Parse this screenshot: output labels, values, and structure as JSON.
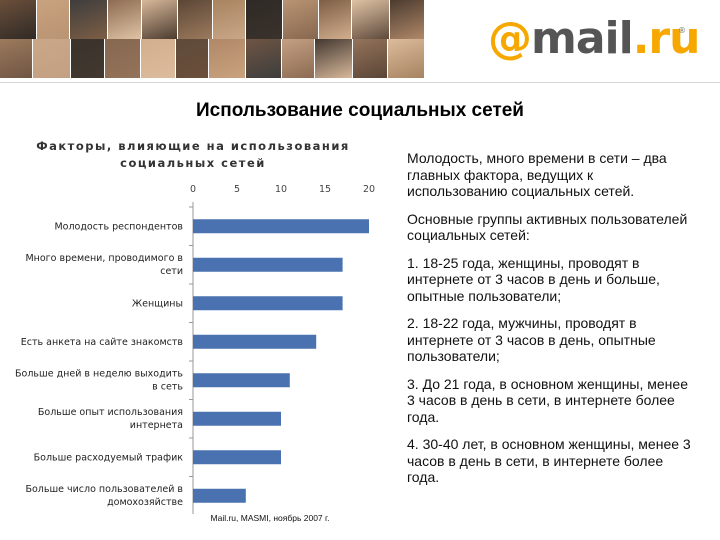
{
  "header": {
    "logo": {
      "at": "@",
      "main": "mail",
      "dot": ".ru",
      "reg": "®"
    }
  },
  "slide_title": "Использование социальных сетей",
  "chart_data": {
    "type": "bar",
    "orientation": "horizontal",
    "title_lines": [
      "Факторы, влияющие на использования",
      "социальных сетей"
    ],
    "categories": [
      [
        "Молодость респондентов"
      ],
      [
        "Много времени, проводимого в",
        "сети"
      ],
      [
        "Женщины"
      ],
      [
        "Есть анкета на сайте знакомств"
      ],
      [
        "Больше дней в неделю выходить",
        "в сеть"
      ],
      [
        "Больше опыт использования",
        "интернета"
      ],
      [
        "Больше расходуемый трафик"
      ],
      [
        "Больше число пользователей в",
        "домохозяйстве"
      ]
    ],
    "values": [
      20,
      17,
      17,
      14,
      11,
      10,
      10,
      6
    ],
    "xlim": [
      0,
      20
    ],
    "xticks": [
      "0",
      "5",
      "10",
      "15",
      "20"
    ],
    "xaxis_position": "top",
    "bar_color": "#4a72b0",
    "grid": false,
    "source_note": "Mail.ru, MASMI, ноябрь 2007 г."
  },
  "text_panel": {
    "intro": "Молодость, много времени в сети – два главных фактора, ведущих к использованию социальных сетей.",
    "groups_heading": "Основные группы активных пользователей социальных сетей:",
    "items": [
      {
        "num": "1.",
        "text": "18-25 года, женщины,  проводят в интернете от 3 часов в день и больше, опытные пользователи;"
      },
      {
        "num": "2.",
        "text": "18-22 года, мужчины, проводят в интернете от 3 часов в день, опытные пользователи;"
      },
      {
        "num": "3.",
        "text": "До 21 года, в основном женщины, менее 3 часов в день в сети, в интернете более года."
      },
      {
        "num": "4.",
        "text": "30-40 лет, в основном женщины, менее 3 часов в день в сети, в интернете более года."
      }
    ]
  }
}
